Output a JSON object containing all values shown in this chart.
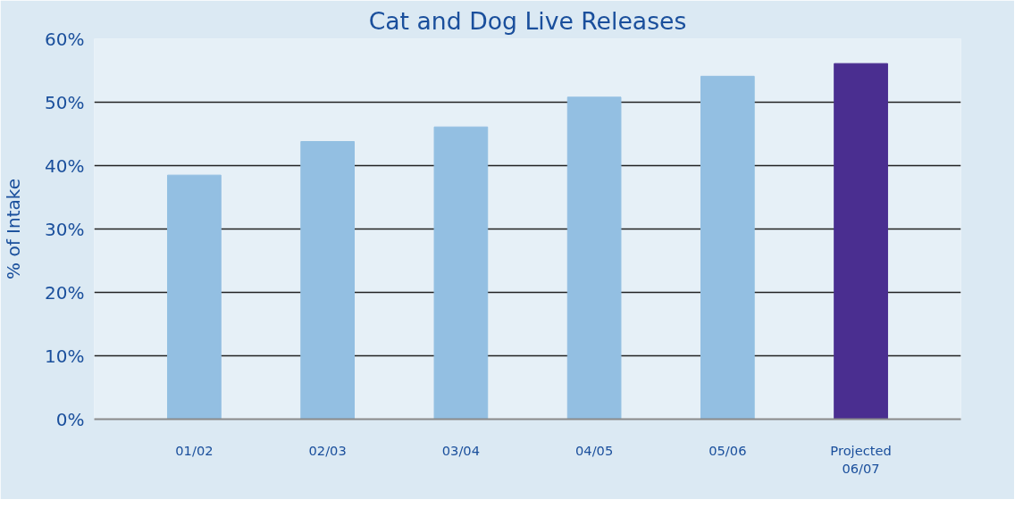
{
  "chart_data": {
    "type": "bar",
    "title": "Cat and Dog Live Releases",
    "ylabel": "% of Intake",
    "categories": [
      "01/02",
      "02/03",
      "03/04",
      "04/05",
      "05/06",
      "Projected\n06/07"
    ],
    "values": [
      38.5,
      43.8,
      46.1,
      50.8,
      54.1,
      56.1
    ],
    "colors": [
      "#93bfe2",
      "#93bfe2",
      "#93bfe2",
      "#93bfe2",
      "#93bfe2",
      "#4a2e90"
    ],
    "ylim": [
      0,
      60
    ],
    "yticks": [
      {
        "value": 0,
        "label": "0%"
      },
      {
        "value": 10,
        "label": "10%"
      },
      {
        "value": 20,
        "label": "20%"
      },
      {
        "value": 30,
        "label": "30%"
      },
      {
        "value": 40,
        "label": "40%"
      },
      {
        "value": 50,
        "label": "50%"
      },
      {
        "value": 60,
        "label": "60%"
      }
    ],
    "grid": "y"
  }
}
